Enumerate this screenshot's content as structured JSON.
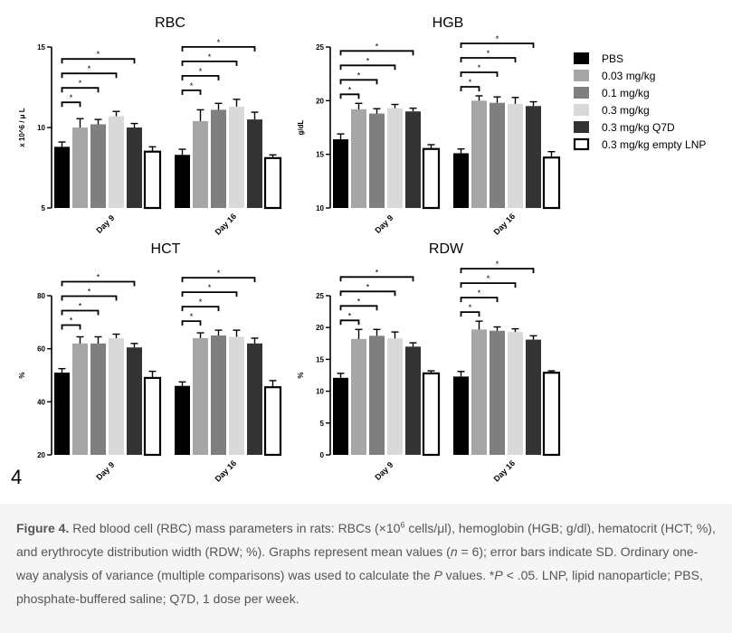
{
  "figure_label": "4",
  "chart_data": [
    {
      "type": "bar",
      "title": "RBC",
      "ylabel": "x 10^6 / μ L",
      "ylim": [
        5,
        15
      ],
      "yticks": [
        "5",
        "10",
        "15"
      ],
      "categories": [
        "Day 9",
        "Day 16"
      ],
      "series": [
        {
          "name": "PBS",
          "values": [
            8.8,
            8.3
          ],
          "sd": [
            0.3,
            0.35
          ]
        },
        {
          "name": "0.03 mg/kg",
          "values": [
            10.0,
            10.4
          ],
          "sd": [
            0.55,
            0.7
          ]
        },
        {
          "name": "0.1 mg/kg",
          "values": [
            10.2,
            11.1
          ],
          "sd": [
            0.3,
            0.4
          ]
        },
        {
          "name": "0.3 mg/kg",
          "values": [
            10.7,
            11.3
          ],
          "sd": [
            0.3,
            0.45
          ]
        },
        {
          "name": "0.3 mg/kg Q7D",
          "values": [
            10.0,
            10.5
          ],
          "sd": [
            0.25,
            0.45
          ]
        },
        {
          "name": "0.3 mg/kg empty LNP",
          "values": [
            8.5,
            8.1
          ],
          "sd": [
            0.3,
            0.2
          ]
        }
      ],
      "significance_mark": "*"
    },
    {
      "type": "bar",
      "title": "HGB",
      "ylabel": "g/dL",
      "ylim": [
        10,
        25
      ],
      "yticks": [
        "10",
        "15",
        "20",
        "25"
      ],
      "categories": [
        "Day 9",
        "Day 16"
      ],
      "series": [
        {
          "name": "PBS",
          "values": [
            16.4,
            15.1
          ],
          "sd": [
            0.5,
            0.4
          ]
        },
        {
          "name": "0.03 mg/kg",
          "values": [
            19.2,
            20.0
          ],
          "sd": [
            0.55,
            0.45
          ]
        },
        {
          "name": "0.1 mg/kg",
          "values": [
            18.8,
            19.8
          ],
          "sd": [
            0.45,
            0.55
          ]
        },
        {
          "name": "0.3 mg/kg",
          "values": [
            19.3,
            19.7
          ],
          "sd": [
            0.35,
            0.6
          ]
        },
        {
          "name": "0.3 mg/kg Q7D",
          "values": [
            19.0,
            19.5
          ],
          "sd": [
            0.3,
            0.4
          ]
        },
        {
          "name": "0.3 mg/kg empty LNP",
          "values": [
            15.5,
            14.7
          ],
          "sd": [
            0.4,
            0.55
          ]
        }
      ],
      "significance_mark": "*"
    },
    {
      "type": "bar",
      "title": "HCT",
      "ylabel": "%",
      "ylim": [
        20,
        80
      ],
      "yticks": [
        "20",
        "40",
        "60",
        "80"
      ],
      "categories": [
        "Day 9",
        "Day 16"
      ],
      "series": [
        {
          "name": "PBS",
          "values": [
            51,
            46
          ],
          "sd": [
            1.5,
            1.5
          ]
        },
        {
          "name": "0.03 mg/kg",
          "values": [
            62,
            64
          ],
          "sd": [
            2.5,
            2
          ]
        },
        {
          "name": "0.1 mg/kg",
          "values": [
            62,
            65
          ],
          "sd": [
            2.5,
            2
          ]
        },
        {
          "name": "0.3 mg/kg",
          "values": [
            64,
            64.5
          ],
          "sd": [
            1.5,
            2.5
          ]
        },
        {
          "name": "0.3 mg/kg Q7D",
          "values": [
            60.5,
            62
          ],
          "sd": [
            1.5,
            2
          ]
        },
        {
          "name": "0.3 mg/kg empty LNP",
          "values": [
            49,
            45.5
          ],
          "sd": [
            2.5,
            2.5
          ]
        }
      ],
      "significance_mark": "*"
    },
    {
      "type": "bar",
      "title": "RDW",
      "ylabel": "%",
      "ylim": [
        0,
        25
      ],
      "yticks": [
        "0",
        "5",
        "10",
        "15",
        "20",
        "25"
      ],
      "categories": [
        "Day 9",
        "Day 16"
      ],
      "series": [
        {
          "name": "PBS",
          "values": [
            12.1,
            12.3
          ],
          "sd": [
            0.7,
            0.8
          ]
        },
        {
          "name": "0.03 mg/kg",
          "values": [
            18.2,
            19.7
          ],
          "sd": [
            1.5,
            1.3
          ]
        },
        {
          "name": "0.1 mg/kg",
          "values": [
            18.7,
            19.5
          ],
          "sd": [
            1.0,
            0.6
          ]
        },
        {
          "name": "0.3 mg/kg",
          "values": [
            18.3,
            19.3
          ],
          "sd": [
            1.0,
            0.5
          ]
        },
        {
          "name": "0.3 mg/kg Q7D",
          "values": [
            17.0,
            18.1
          ],
          "sd": [
            0.6,
            0.6
          ]
        },
        {
          "name": "0.3 mg/kg empty LNP",
          "values": [
            12.8,
            12.9
          ],
          "sd": [
            0.4,
            0.3
          ]
        }
      ],
      "significance_mark": "*"
    }
  ],
  "legend": {
    "entries": [
      "PBS",
      "0.03 mg/kg",
      "0.1 mg/kg",
      "0.3 mg/kg",
      "0.3 mg/kg Q7D",
      "0.3 mg/kg empty LNP"
    ],
    "colors": [
      "#000000",
      "#a6a6a6",
      "#7f7f7f",
      "#d9d9d9",
      "#333333",
      "#ffffff"
    ]
  },
  "caption": {
    "label": "Figure 4.",
    "text_1": " Red blood cell (RBC) mass parameters in rats: RBCs (×10",
    "sup_1": "6",
    "text_2": " cells/μl), hemoglobin (HGB; g/dl), hematocrit (HCT; %), and erythrocyte distribution width (RDW; %). Graphs represent mean values (",
    "n_symbol": "n",
    "text_3": " = 6); error bars indicate SD. Ordinary one-way analysis of variance (multiple comparisons) was used to calculate the ",
    "p_symbol_1": "P",
    "text_4": " values. *",
    "p_symbol_2": "P",
    "text_5": " < .05. LNP, lipid nanoparticle; PBS, phosphate-buffered saline; Q7D, 1 dose per week."
  }
}
